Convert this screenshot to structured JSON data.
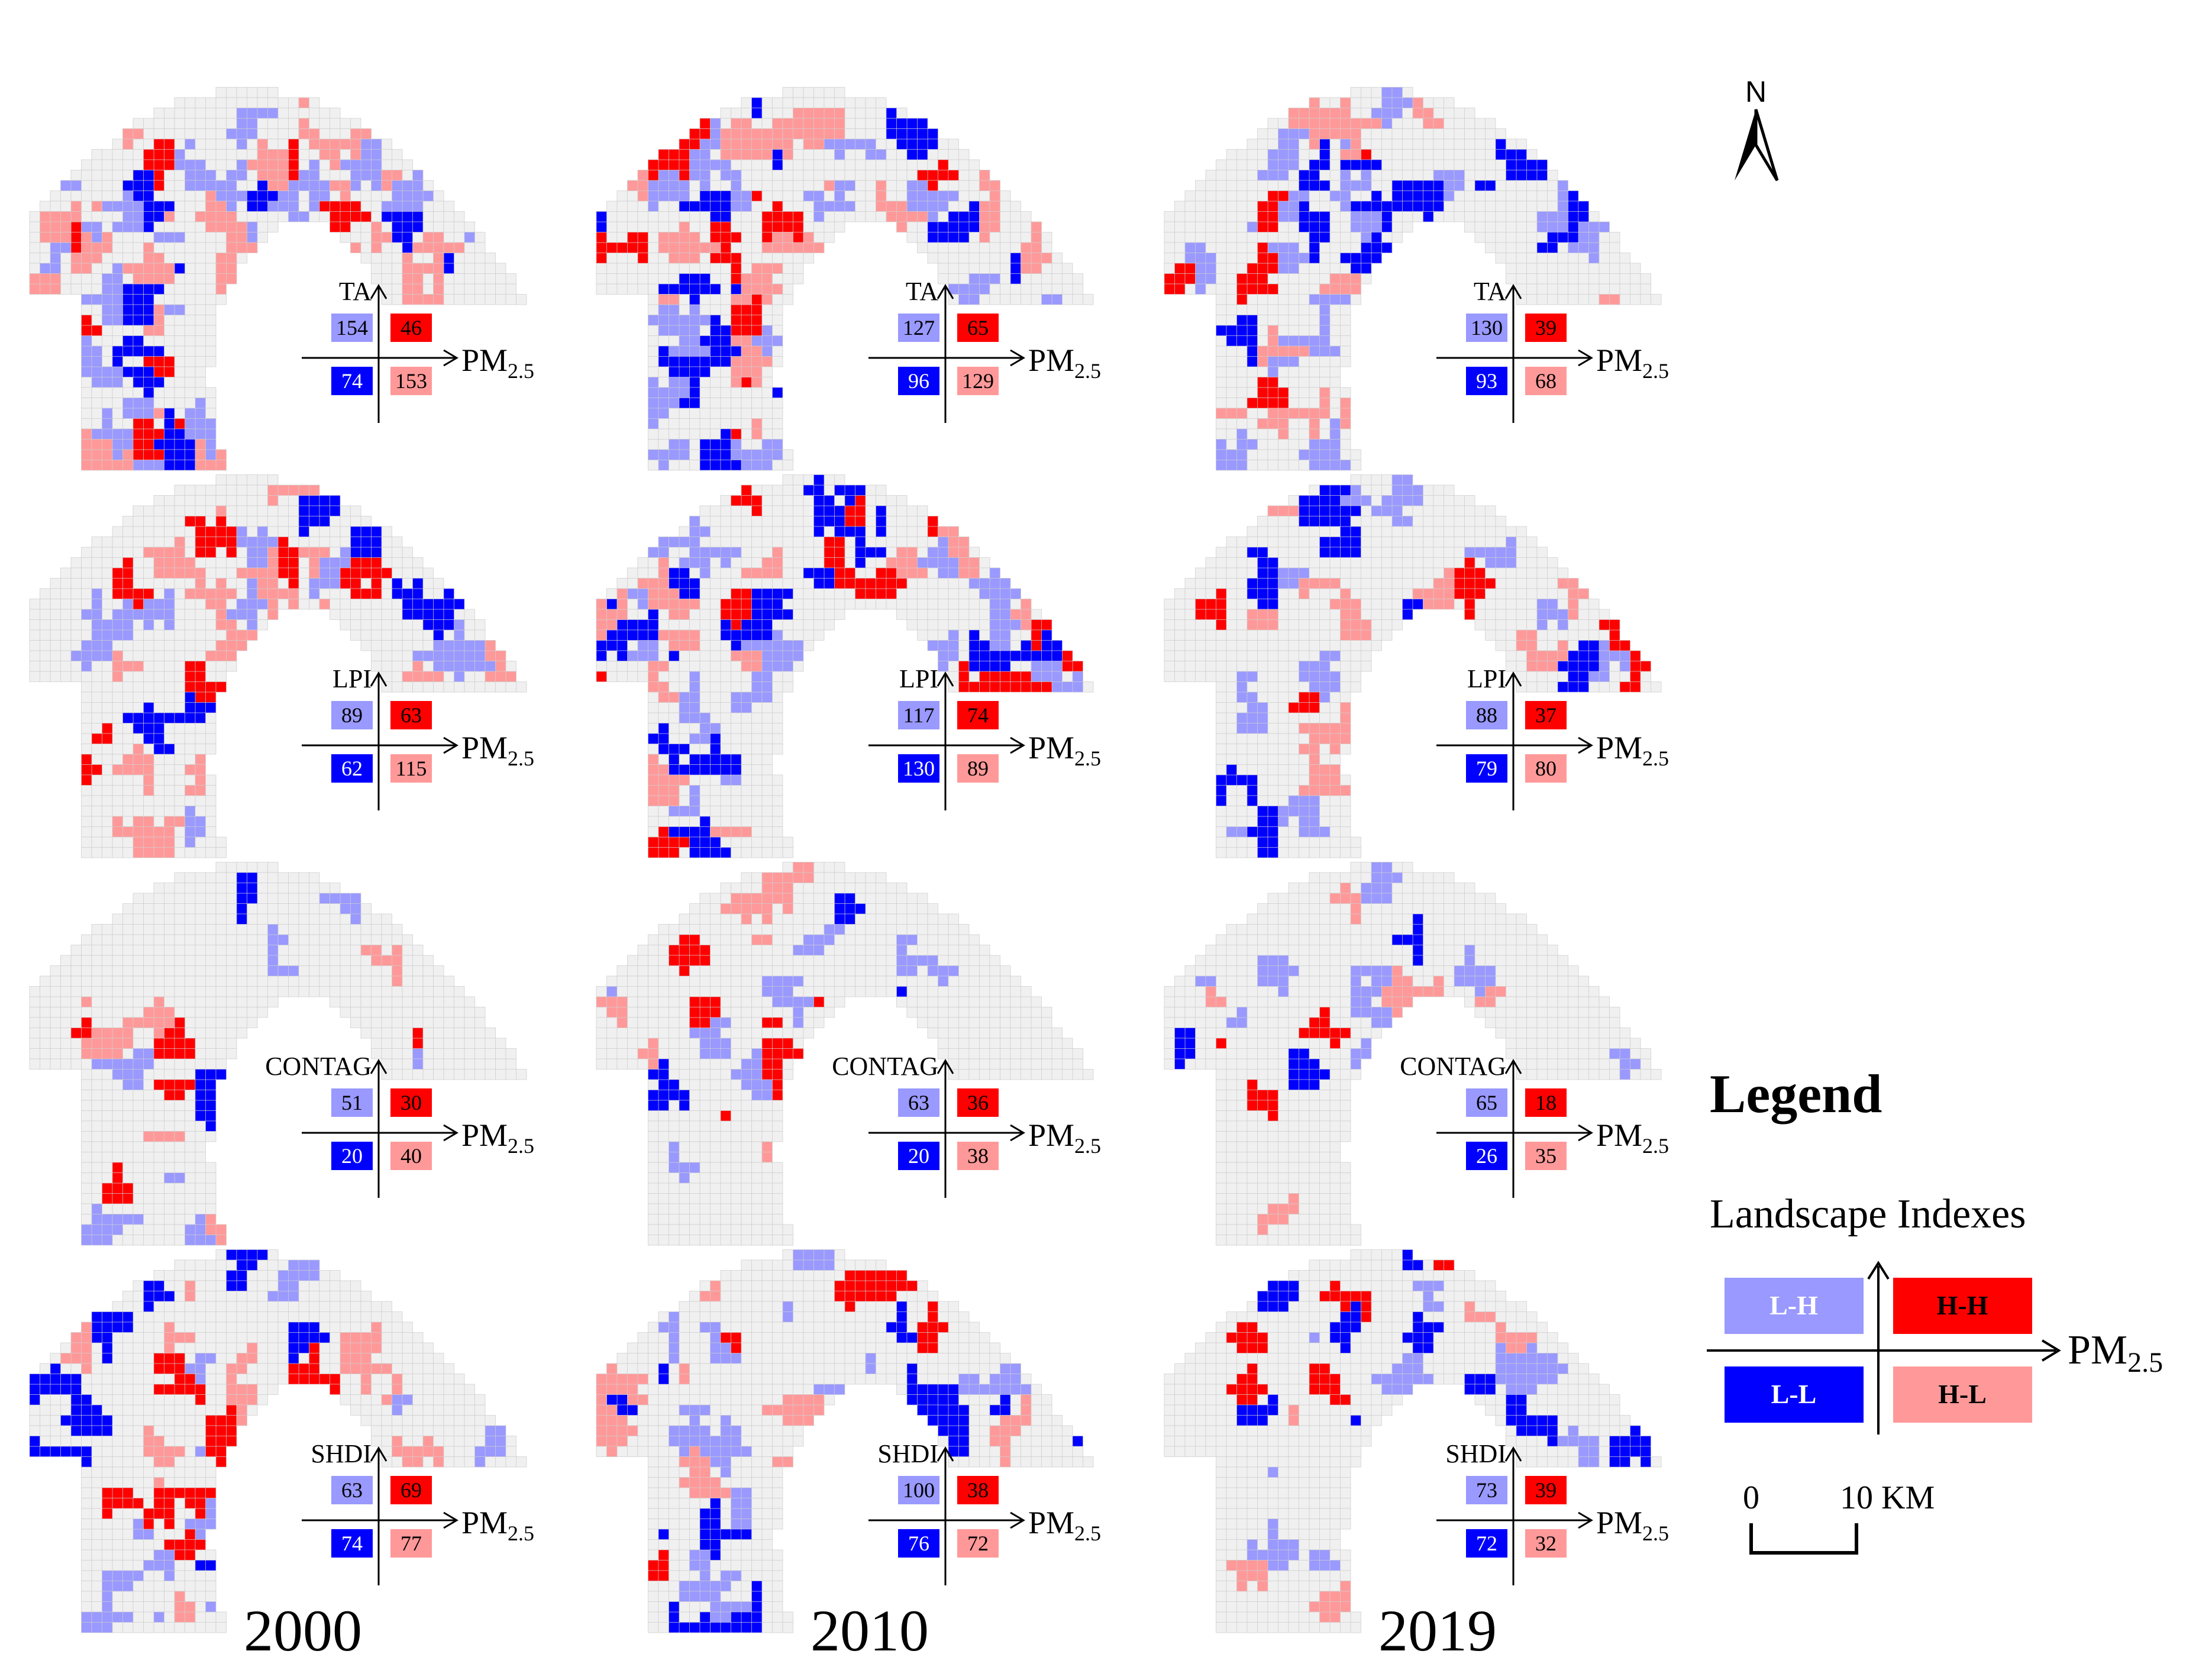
{
  "years": [
    "2000",
    "2010",
    "2019"
  ],
  "rows": [
    "TA",
    "LPI",
    "CONTAG",
    "SHDI"
  ],
  "axis_x_label_main": "PM",
  "axis_x_label_sub": "2.5",
  "counts": {
    "TA": {
      "2000": {
        "LH": 154,
        "HH": 46,
        "LL": 74,
        "HL": 153
      },
      "2010": {
        "LH": 127,
        "HH": 65,
        "LL": 96,
        "HL": 129
      },
      "2019": {
        "LH": 130,
        "HH": 39,
        "LL": 93,
        "HL": 68
      }
    },
    "LPI": {
      "2000": {
        "LH": 89,
        "HH": 63,
        "LL": 62,
        "HL": 115
      },
      "2010": {
        "LH": 117,
        "HH": 74,
        "LL": 130,
        "HL": 89
      },
      "2019": {
        "LH": 88,
        "HH": 37,
        "LL": 79,
        "HL": 80
      }
    },
    "CONTAG": {
      "2000": {
        "LH": 51,
        "HH": 30,
        "LL": 20,
        "HL": 40
      },
      "2010": {
        "LH": 63,
        "HH": 36,
        "LL": 20,
        "HL": 38
      },
      "2019": {
        "LH": 65,
        "HH": 18,
        "LL": 26,
        "HL": 35
      }
    },
    "SHDI": {
      "2000": {
        "LH": 63,
        "HH": 69,
        "LL": 74,
        "HL": 77
      },
      "2010": {
        "LH": 100,
        "HH": 38,
        "LL": 76,
        "HL": 72
      },
      "2019": {
        "LH": 73,
        "HH": 39,
        "LL": 72,
        "HL": 32
      }
    }
  },
  "colors": {
    "LH": "#9999ff",
    "HH": "#ff0000",
    "LL": "#0000ff",
    "HL": "#ff9999",
    "background_cell": "#f0f0f0",
    "cell_border": "#d0d0d0"
  },
  "north_label": "N",
  "legend": {
    "title": "Legend",
    "subtitle": "Landscape Indexes",
    "labels": {
      "LH": "L-H",
      "HH": "H-H",
      "LL": "L-L",
      "HL": "H-L"
    },
    "x_label_main": "PM",
    "x_label_sub": "2.5"
  },
  "scale_bar": {
    "start": "0",
    "end": "10 KM"
  }
}
